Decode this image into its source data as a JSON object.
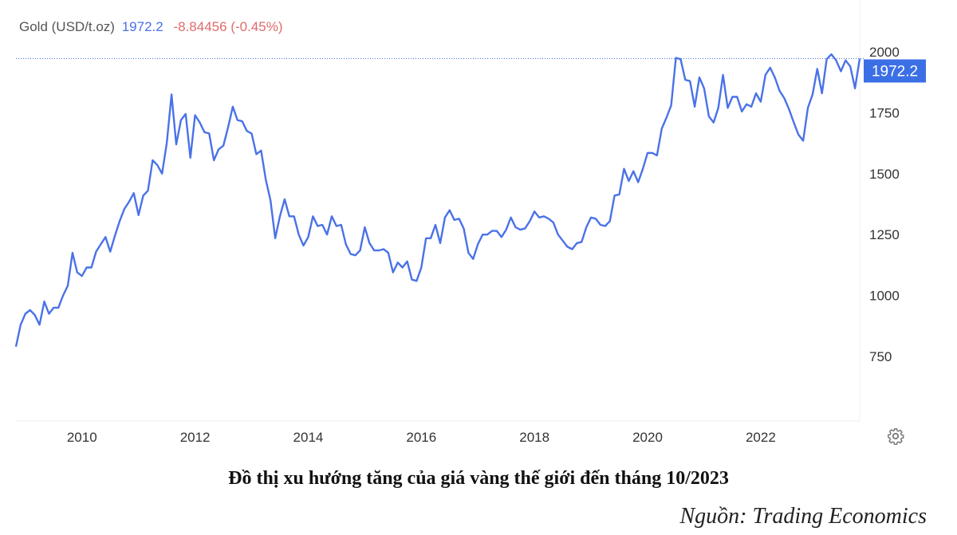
{
  "header": {
    "name": "Gold (USD/t.oz)",
    "price": "1972.2",
    "change": "-8.84456 (-0.45%)"
  },
  "caption": "Đồ thị xu hướng tăng của giá vàng thế giới đến tháng 10/2023",
  "source": "Nguồn: Trading Economics",
  "colors": {
    "line": "#4a72e8",
    "label_bg": "#3b6fe6",
    "change": "#e06b6b"
  },
  "chart_data": {
    "type": "line",
    "title": "",
    "xlabel": "",
    "ylabel": "",
    "x_ticks": [
      "2010",
      "2012",
      "2014",
      "2016",
      "2018",
      "2020",
      "2022"
    ],
    "y_ticks": [
      "750",
      "1000",
      "1250",
      "1500",
      "1750",
      "2000"
    ],
    "ylim": [
      560,
      2000
    ],
    "xlim": [
      "2008-11",
      "2023-10"
    ],
    "y_axis_side": "right",
    "grid": false,
    "last_value_label": "1972.2",
    "series": [
      {
        "x": [
          "2008-11",
          "2008-12",
          "2009-01",
          "2009-02",
          "2009-03",
          "2009-04",
          "2009-05",
          "2009-06",
          "2009-07",
          "2009-08",
          "2009-09",
          "2009-10",
          "2009-11",
          "2009-12",
          "2010-01",
          "2010-02",
          "2010-03",
          "2010-04",
          "2010-05",
          "2010-06",
          "2010-07",
          "2010-08",
          "2010-09",
          "2010-10",
          "2010-11",
          "2010-12",
          "2011-01",
          "2011-02",
          "2011-03",
          "2011-04",
          "2011-05",
          "2011-06",
          "2011-07",
          "2011-08",
          "2011-09",
          "2011-10",
          "2011-11",
          "2011-12",
          "2012-01",
          "2012-02",
          "2012-03",
          "2012-04",
          "2012-05",
          "2012-06",
          "2012-07",
          "2012-08",
          "2012-09",
          "2012-10",
          "2012-11",
          "2012-12",
          "2013-01",
          "2013-02",
          "2013-03",
          "2013-04",
          "2013-05",
          "2013-06",
          "2013-07",
          "2013-08",
          "2013-09",
          "2013-10",
          "2013-11",
          "2013-12",
          "2014-01",
          "2014-02",
          "2014-03",
          "2014-04",
          "2014-05",
          "2014-06",
          "2014-07",
          "2014-08",
          "2014-09",
          "2014-10",
          "2014-11",
          "2014-12",
          "2015-01",
          "2015-02",
          "2015-03",
          "2015-04",
          "2015-05",
          "2015-06",
          "2015-07",
          "2015-08",
          "2015-09",
          "2015-10",
          "2015-11",
          "2015-12",
          "2016-01",
          "2016-02",
          "2016-03",
          "2016-04",
          "2016-05",
          "2016-06",
          "2016-07",
          "2016-08",
          "2016-09",
          "2016-10",
          "2016-11",
          "2016-12",
          "2017-01",
          "2017-02",
          "2017-03",
          "2017-04",
          "2017-05",
          "2017-06",
          "2017-07",
          "2017-08",
          "2017-09",
          "2017-10",
          "2017-11",
          "2017-12",
          "2018-01",
          "2018-02",
          "2018-03",
          "2018-04",
          "2018-05",
          "2018-06",
          "2018-07",
          "2018-08",
          "2018-09",
          "2018-10",
          "2018-11",
          "2018-12",
          "2019-01",
          "2019-02",
          "2019-03",
          "2019-04",
          "2019-05",
          "2019-06",
          "2019-07",
          "2019-08",
          "2019-09",
          "2019-10",
          "2019-11",
          "2019-12",
          "2020-01",
          "2020-02",
          "2020-03",
          "2020-04",
          "2020-05",
          "2020-06",
          "2020-07",
          "2020-08",
          "2020-09",
          "2020-10",
          "2020-11",
          "2020-12",
          "2021-01",
          "2021-02",
          "2021-03",
          "2021-04",
          "2021-05",
          "2021-06",
          "2021-07",
          "2021-08",
          "2021-09",
          "2021-10",
          "2021-11",
          "2021-12",
          "2022-01",
          "2022-02",
          "2022-03",
          "2022-04",
          "2022-05",
          "2022-06",
          "2022-07",
          "2022-08",
          "2022-09",
          "2022-10",
          "2022-11",
          "2022-12",
          "2023-01",
          "2023-02",
          "2023-03",
          "2023-04",
          "2023-05",
          "2023-06",
          "2023-07",
          "2023-08",
          "2023-09",
          "2023-10"
        ],
        "values": [
          790,
          880,
          925,
          940,
          920,
          880,
          975,
          925,
          950,
          950,
          1000,
          1040,
          1175,
          1095,
          1080,
          1115,
          1115,
          1180,
          1210,
          1240,
          1180,
          1245,
          1305,
          1355,
          1385,
          1420,
          1330,
          1410,
          1430,
          1555,
          1535,
          1500,
          1625,
          1825,
          1620,
          1720,
          1745,
          1565,
          1740,
          1710,
          1670,
          1665,
          1555,
          1600,
          1615,
          1690,
          1775,
          1720,
          1715,
          1675,
          1665,
          1580,
          1595,
          1475,
          1390,
          1235,
          1325,
          1395,
          1325,
          1325,
          1250,
          1205,
          1240,
          1325,
          1285,
          1290,
          1250,
          1325,
          1285,
          1290,
          1210,
          1170,
          1165,
          1185,
          1280,
          1215,
          1185,
          1185,
          1190,
          1175,
          1095,
          1135,
          1115,
          1140,
          1065,
          1060,
          1115,
          1235,
          1235,
          1290,
          1215,
          1320,
          1350,
          1310,
          1315,
          1275,
          1175,
          1150,
          1210,
          1250,
          1250,
          1265,
          1265,
          1240,
          1270,
          1320,
          1280,
          1270,
          1275,
          1305,
          1345,
          1320,
          1325,
          1315,
          1300,
          1250,
          1225,
          1200,
          1190,
          1215,
          1220,
          1280,
          1320,
          1315,
          1290,
          1285,
          1305,
          1410,
          1415,
          1520,
          1470,
          1510,
          1465,
          1520,
          1585,
          1585,
          1575,
          1685,
          1730,
          1780,
          1975,
          1970,
          1885,
          1880,
          1775,
          1895,
          1850,
          1735,
          1710,
          1770,
          1905,
          1770,
          1815,
          1815,
          1755,
          1785,
          1775,
          1830,
          1795,
          1905,
          1935,
          1895,
          1840,
          1810,
          1765,
          1710,
          1660,
          1635,
          1770,
          1825,
          1930,
          1830,
          1970,
          1990,
          1965,
          1920,
          1965,
          1940,
          1850,
          1972.2
        ]
      }
    ]
  }
}
